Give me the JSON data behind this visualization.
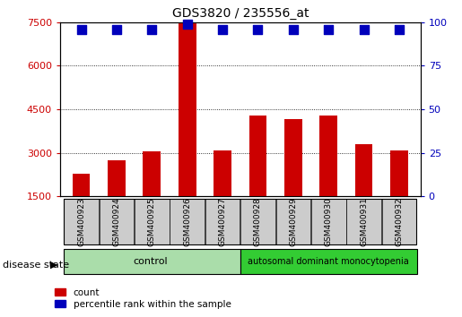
{
  "title": "GDS3820 / 235556_at",
  "samples": [
    "GSM400923",
    "GSM400924",
    "GSM400925",
    "GSM400926",
    "GSM400927",
    "GSM400928",
    "GSM400929",
    "GSM400930",
    "GSM400931",
    "GSM400932"
  ],
  "counts": [
    2300,
    2750,
    3050,
    7450,
    3100,
    4300,
    4150,
    4300,
    3300,
    3100
  ],
  "percentiles": [
    96,
    96,
    96,
    99,
    96,
    96,
    96,
    96,
    96,
    96
  ],
  "ylim_left": [
    1500,
    7500
  ],
  "ylim_right": [
    0,
    100
  ],
  "yticks_left": [
    1500,
    3000,
    4500,
    6000,
    7500
  ],
  "yticks_right": [
    0,
    25,
    50,
    75,
    100
  ],
  "bar_color": "#cc0000",
  "dot_color": "#0000bb",
  "bg_color": "#ffffff",
  "label_bg": "#cccccc",
  "n_control": 5,
  "control_label": "control",
  "disease_label": "autosomal dominant monocytopenia",
  "group_label": "disease state",
  "control_bg": "#aaddaa",
  "disease_bg": "#33cc33",
  "legend_count": "count",
  "legend_pct": "percentile rank within the sample",
  "bar_width": 0.5,
  "dot_size": 55,
  "title_fontsize": 10
}
